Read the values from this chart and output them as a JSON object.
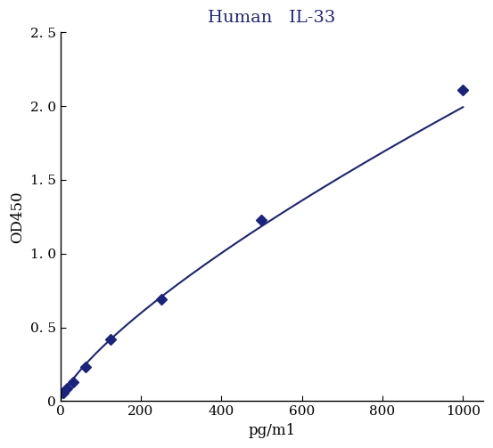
{
  "title": "Human   IL-33",
  "title_color": "#1a237e",
  "xlabel": "pg/m1",
  "ylabel": "OD450",
  "x_data": [
    0,
    7.8,
    15.6,
    31.25,
    62.5,
    125,
    250,
    500,
    1000
  ],
  "y_data": [
    0.03,
    0.06,
    0.09,
    0.13,
    0.23,
    0.42,
    0.69,
    1.23,
    2.11
  ],
  "marker_x": [
    7.8,
    15.6,
    31.25,
    62.5,
    125,
    250,
    500,
    1000
  ],
  "marker_y": [
    0.06,
    0.09,
    0.13,
    0.23,
    0.42,
    0.69,
    1.23,
    2.11
  ],
  "line_color": "#1a237e",
  "marker_color": "#1a237e",
  "xlim": [
    0,
    1050
  ],
  "ylim": [
    0,
    2.5
  ],
  "xticks": [
    0,
    200,
    400,
    600,
    800,
    1000
  ],
  "yticks": [
    0,
    0.5,
    1.0,
    1.5,
    2.0,
    2.5
  ],
  "ytick_labels": [
    "0",
    "0. 5",
    "1. 0",
    "1. 5",
    "2. 0",
    "2. 5"
  ],
  "xtick_labels": [
    "0",
    "200",
    "400",
    "600",
    "800",
    "1000"
  ],
  "title_fontsize": 14,
  "axis_label_fontsize": 12,
  "tick_fontsize": 11,
  "background_color": "#ffffff",
  "figsize": [
    5.53,
    5.03
  ],
  "dpi": 100
}
